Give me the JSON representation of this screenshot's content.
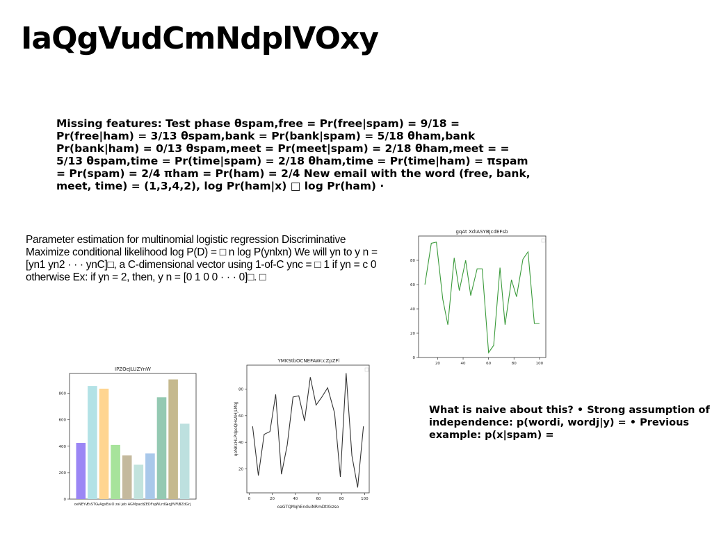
{
  "slide": {
    "title": "IaQgVudCmNdplVOxy",
    "missing_features_text": "Missing features: Test phase θspam,free = Pr(free|spam) = 9/18 = Pr(free|ham) = 3/13 θspam,bank = Pr(bank|spam) = 5/18 θham,bank Pr(bank|ham) = 0/13 θspam,meet = Pr(meet|spam) = 2/18 θham,meet = = 5/13 θspam,time = Pr(time|spam) = 2/18 θham,time = Pr(time|ham) = πspam = Pr(spam) = 2/4 πham = Pr(ham) = 2/4 New email with the word (free, bank, meet, time) = (1,3,4,2), log Pr(ham|x) □ log Pr(ham) ·",
    "param_estimation_text": "Parameter estimation for multinomial logistic regression Discriminative Maximize conditional likelihood log P(D) = □ n log P(ynlxn) We will yn to y n = [yn1 yn2 · · · ynC]□, a C-dimensional vector using 1-of-C ync = □ 1 if yn = c 0 otherwise Ex: if yn = 2, then, y n = [0 1 0 0 · · · 0]□. □",
    "naive_text": "What is naive about this? • Strong assumption of independence: p(wordi, wordj|y) = • Previous example: p(x|spam) ="
  },
  "chart_data": [
    {
      "type": "line",
      "title": "gqAt XdIASYBJcdEFsb",
      "xlabel": "",
      "ylabel": "",
      "color": "#3a9a3a",
      "x": [
        10,
        15,
        19,
        24,
        28,
        33,
        37,
        42,
        46,
        51,
        55,
        60,
        64,
        69,
        73,
        78,
        82,
        87,
        91,
        96,
        100
      ],
      "values": [
        60,
        94,
        95,
        48,
        27,
        82,
        55,
        80,
        51,
        73,
        73,
        4,
        10,
        74,
        27,
        64,
        50,
        81,
        87,
        28,
        28
      ],
      "xticks": [
        20,
        40,
        60,
        80,
        100
      ],
      "yticks": [
        0,
        20,
        40,
        60,
        80
      ],
      "xlim": [
        5,
        105
      ],
      "ylim": [
        0,
        100
      ]
    },
    {
      "type": "bar",
      "title": "IPZOeJLUZYnW",
      "categories": [
        "oeNEYv",
        "EsSTG",
        "vAgxEa",
        "iO zal",
        "jeb AG",
        "Mpacb",
        "ZEDFsp",
        "WLrdG",
        "aqJfVFU",
        "BZdGrj"
      ],
      "values": [
        425,
        855,
        835,
        410,
        330,
        260,
        345,
        770,
        905,
        570
      ],
      "colors": [
        "#9b86f5",
        "#b3e2e6",
        "#ffd591",
        "#a7e39b",
        "#c4b99d",
        "#c2e3dd",
        "#a9c8ea",
        "#94c9b2",
        "#c5b98e",
        "#bde0df"
      ],
      "yticks": [
        0,
        200,
        400,
        600,
        800
      ],
      "ylim": [
        0,
        950
      ]
    },
    {
      "type": "line",
      "title": "YMKStbOCNEFAWccZpZFl",
      "xlabel": "oaGTQMqhEnduiNRmDtXkzso",
      "ylabel": "qoNKcHLPdpoQHsAHJLMqJ",
      "color": "#333333",
      "x": [
        3,
        8,
        13,
        18,
        23,
        28,
        33,
        38,
        43,
        48,
        53,
        58,
        63,
        68,
        74,
        79,
        84,
        89,
        94,
        99
      ],
      "values": [
        52,
        15,
        46,
        48,
        76,
        16,
        38,
        74,
        75,
        56,
        89,
        68,
        74,
        81,
        62,
        14,
        92,
        30,
        6,
        52
      ],
      "xticks": [
        0,
        20,
        40,
        60,
        80,
        100
      ],
      "yticks": [
        20,
        40,
        60,
        80
      ],
      "xlim": [
        -2,
        104
      ],
      "ylim": [
        2,
        98
      ]
    }
  ]
}
